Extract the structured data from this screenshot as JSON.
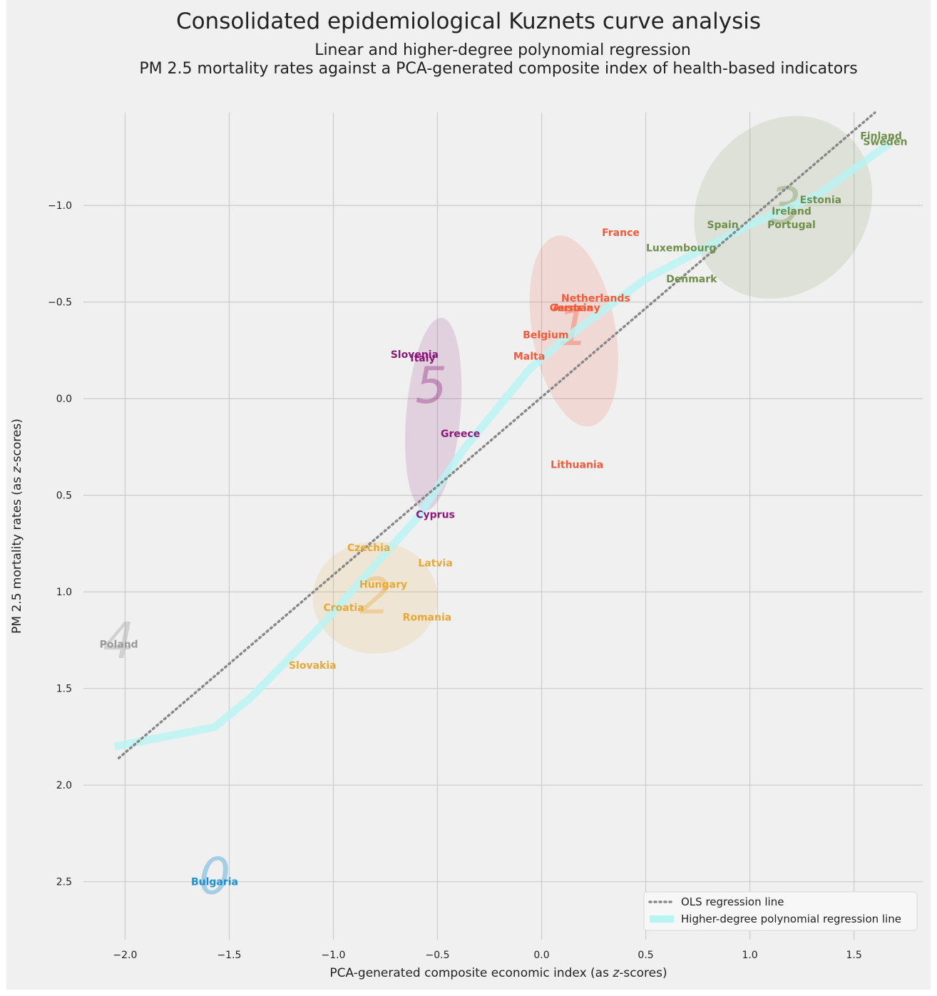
{
  "chart_data": {
    "type": "scatter",
    "title": "Consolidated epidemiological Kuznets curve analysis",
    "subtitle_line1": "Linear and higher-degree polynomial regression",
    "subtitle_line2": "PM 2.5 mortality rates against a PCA-generated composite index of health-based indicators",
    "xlabel_prefix": "PCA-generated composite economic index (as ",
    "xlabel_italic": "z",
    "xlabel_suffix": "-scores)",
    "ylabel_prefix": "PM 2.5 mortality rates (as ",
    "ylabel_italic": "z",
    "ylabel_suffix": "-scores)",
    "xlim": [
      -2.2,
      1.83
    ],
    "ylim": [
      2.8,
      -1.48
    ],
    "y_inverted": true,
    "x_ticks": [
      -2.0,
      -1.5,
      -1.0,
      -0.5,
      0.0,
      0.5,
      1.0,
      1.5
    ],
    "x_tick_labels": [
      "−2.0",
      "−1.5",
      "−1.0",
      "−0.5",
      "0.0",
      "0.5",
      "1.0",
      "1.5"
    ],
    "y_ticks": [
      -1.0,
      -0.5,
      0.0,
      0.5,
      1.0,
      1.5,
      2.0,
      2.5
    ],
    "y_tick_labels": [
      "−1.0",
      "−0.5",
      "0.0",
      "0.5",
      "1.0",
      "1.5",
      "2.0",
      "2.5"
    ],
    "grid": true,
    "clusters": [
      {
        "id": "0",
        "color": "#1a8fd4",
        "center": [
          -1.57,
          2.47
        ],
        "ellipse": null
      },
      {
        "id": "1",
        "color": "#f15a3a",
        "center": [
          0.15,
          -0.37
        ],
        "ellipse": {
          "cx": 0.155,
          "cy": -0.35,
          "rx": 0.2,
          "ry": 0.5,
          "angle": -10
        }
      },
      {
        "id": "2",
        "color": "#e8a838",
        "center": [
          -0.8,
          1.02
        ],
        "ellipse": {
          "cx": -0.8,
          "cy": 1.03,
          "rx": 0.3,
          "ry": 0.29,
          "angle": 0
        }
      },
      {
        "id": "3",
        "color": "#6f8f4a",
        "center": [
          1.17,
          -1.0
        ],
        "ellipse": {
          "cx": 1.16,
          "cy": -0.99,
          "rx": 0.4,
          "ry": 0.5,
          "angle": 40
        }
      },
      {
        "id": "4",
        "color": "#999999",
        "center": [
          -2.03,
          1.25
        ],
        "ellipse": null
      },
      {
        "id": "5",
        "color": "#8b1a7a",
        "center": [
          -0.53,
          -0.07
        ],
        "ellipse": {
          "cx": -0.52,
          "cy": 0.08,
          "rx": 0.13,
          "ry": 0.5,
          "angle": 5
        }
      }
    ],
    "points": [
      {
        "label": "Bulgaria",
        "x": -1.57,
        "y": 2.5,
        "cluster": "0"
      },
      {
        "label": "France",
        "x": 0.38,
        "y": -0.86,
        "cluster": "1"
      },
      {
        "label": "Netherlands",
        "x": 0.26,
        "y": -0.52,
        "cluster": "1"
      },
      {
        "label": "Austria",
        "x": 0.15,
        "y": -0.47,
        "cluster": "1"
      },
      {
        "label": "Germany",
        "x": 0.16,
        "y": -0.47,
        "cluster": "1"
      },
      {
        "label": "Belgium",
        "x": 0.02,
        "y": -0.33,
        "cluster": "1"
      },
      {
        "label": "Malta",
        "x": -0.06,
        "y": -0.22,
        "cluster": "1"
      },
      {
        "label": "Lithuania",
        "x": 0.17,
        "y": 0.34,
        "cluster": "1"
      },
      {
        "label": "Czechia",
        "x": -0.83,
        "y": 0.77,
        "cluster": "2"
      },
      {
        "label": "Latvia",
        "x": -0.51,
        "y": 0.85,
        "cluster": "2"
      },
      {
        "label": "Hungary",
        "x": -0.76,
        "y": 0.96,
        "cluster": "2"
      },
      {
        "label": "Croatia",
        "x": -0.95,
        "y": 1.08,
        "cluster": "2"
      },
      {
        "label": "Romania",
        "x": -0.55,
        "y": 1.13,
        "cluster": "2"
      },
      {
        "label": "Slovakia",
        "x": -1.1,
        "y": 1.38,
        "cluster": "2"
      },
      {
        "label": "Finland",
        "x": 1.63,
        "y": -1.36,
        "cluster": "3"
      },
      {
        "label": "Sweden",
        "x": 1.65,
        "y": -1.33,
        "cluster": "3"
      },
      {
        "label": "Estonia",
        "x": 1.34,
        "y": -1.03,
        "cluster": "3"
      },
      {
        "label": "Ireland",
        "x": 1.2,
        "y": -0.97,
        "cluster": "3"
      },
      {
        "label": "Spain",
        "x": 0.87,
        "y": -0.9,
        "cluster": "3"
      },
      {
        "label": "Portugal",
        "x": 1.2,
        "y": -0.9,
        "cluster": "3"
      },
      {
        "label": "Luxembourg",
        "x": 0.67,
        "y": -0.78,
        "cluster": "3"
      },
      {
        "label": "Denmark",
        "x": 0.72,
        "y": -0.62,
        "cluster": "3"
      },
      {
        "label": "Poland",
        "x": -2.03,
        "y": 1.27,
        "cluster": "4"
      },
      {
        "label": "Slovenia",
        "x": -0.61,
        "y": -0.23,
        "cluster": "5"
      },
      {
        "label": "Italy",
        "x": -0.57,
        "y": -0.21,
        "cluster": "5"
      },
      {
        "label": "Greece",
        "x": -0.39,
        "y": 0.18,
        "cluster": "5"
      },
      {
        "label": "Cyprus",
        "x": -0.51,
        "y": 0.6,
        "cluster": "5"
      }
    ],
    "series": [
      {
        "name": "OLS regression line",
        "style": "dotted",
        "color": "#888888",
        "x": [
          -2.03,
          1.6
        ],
        "y": [
          1.86,
          -1.48
        ]
      },
      {
        "name": "Higher-degree polynomial regression line",
        "style": "thick",
        "color": "#b8f4f4",
        "x": [
          -2.05,
          -1.57,
          -1.4,
          -1.08,
          -0.6,
          -0.38,
          -0.06,
          0.1,
          0.5,
          1.0,
          1.32,
          1.67
        ],
        "y": [
          1.8,
          1.7,
          1.55,
          1.2,
          0.62,
          0.27,
          -0.15,
          -0.3,
          -0.62,
          -0.9,
          -1.05,
          -1.32
        ]
      }
    ],
    "legend": {
      "position": "lower-right",
      "entries": [
        "OLS regression line",
        "Higher-degree polynomial regression line"
      ]
    }
  }
}
